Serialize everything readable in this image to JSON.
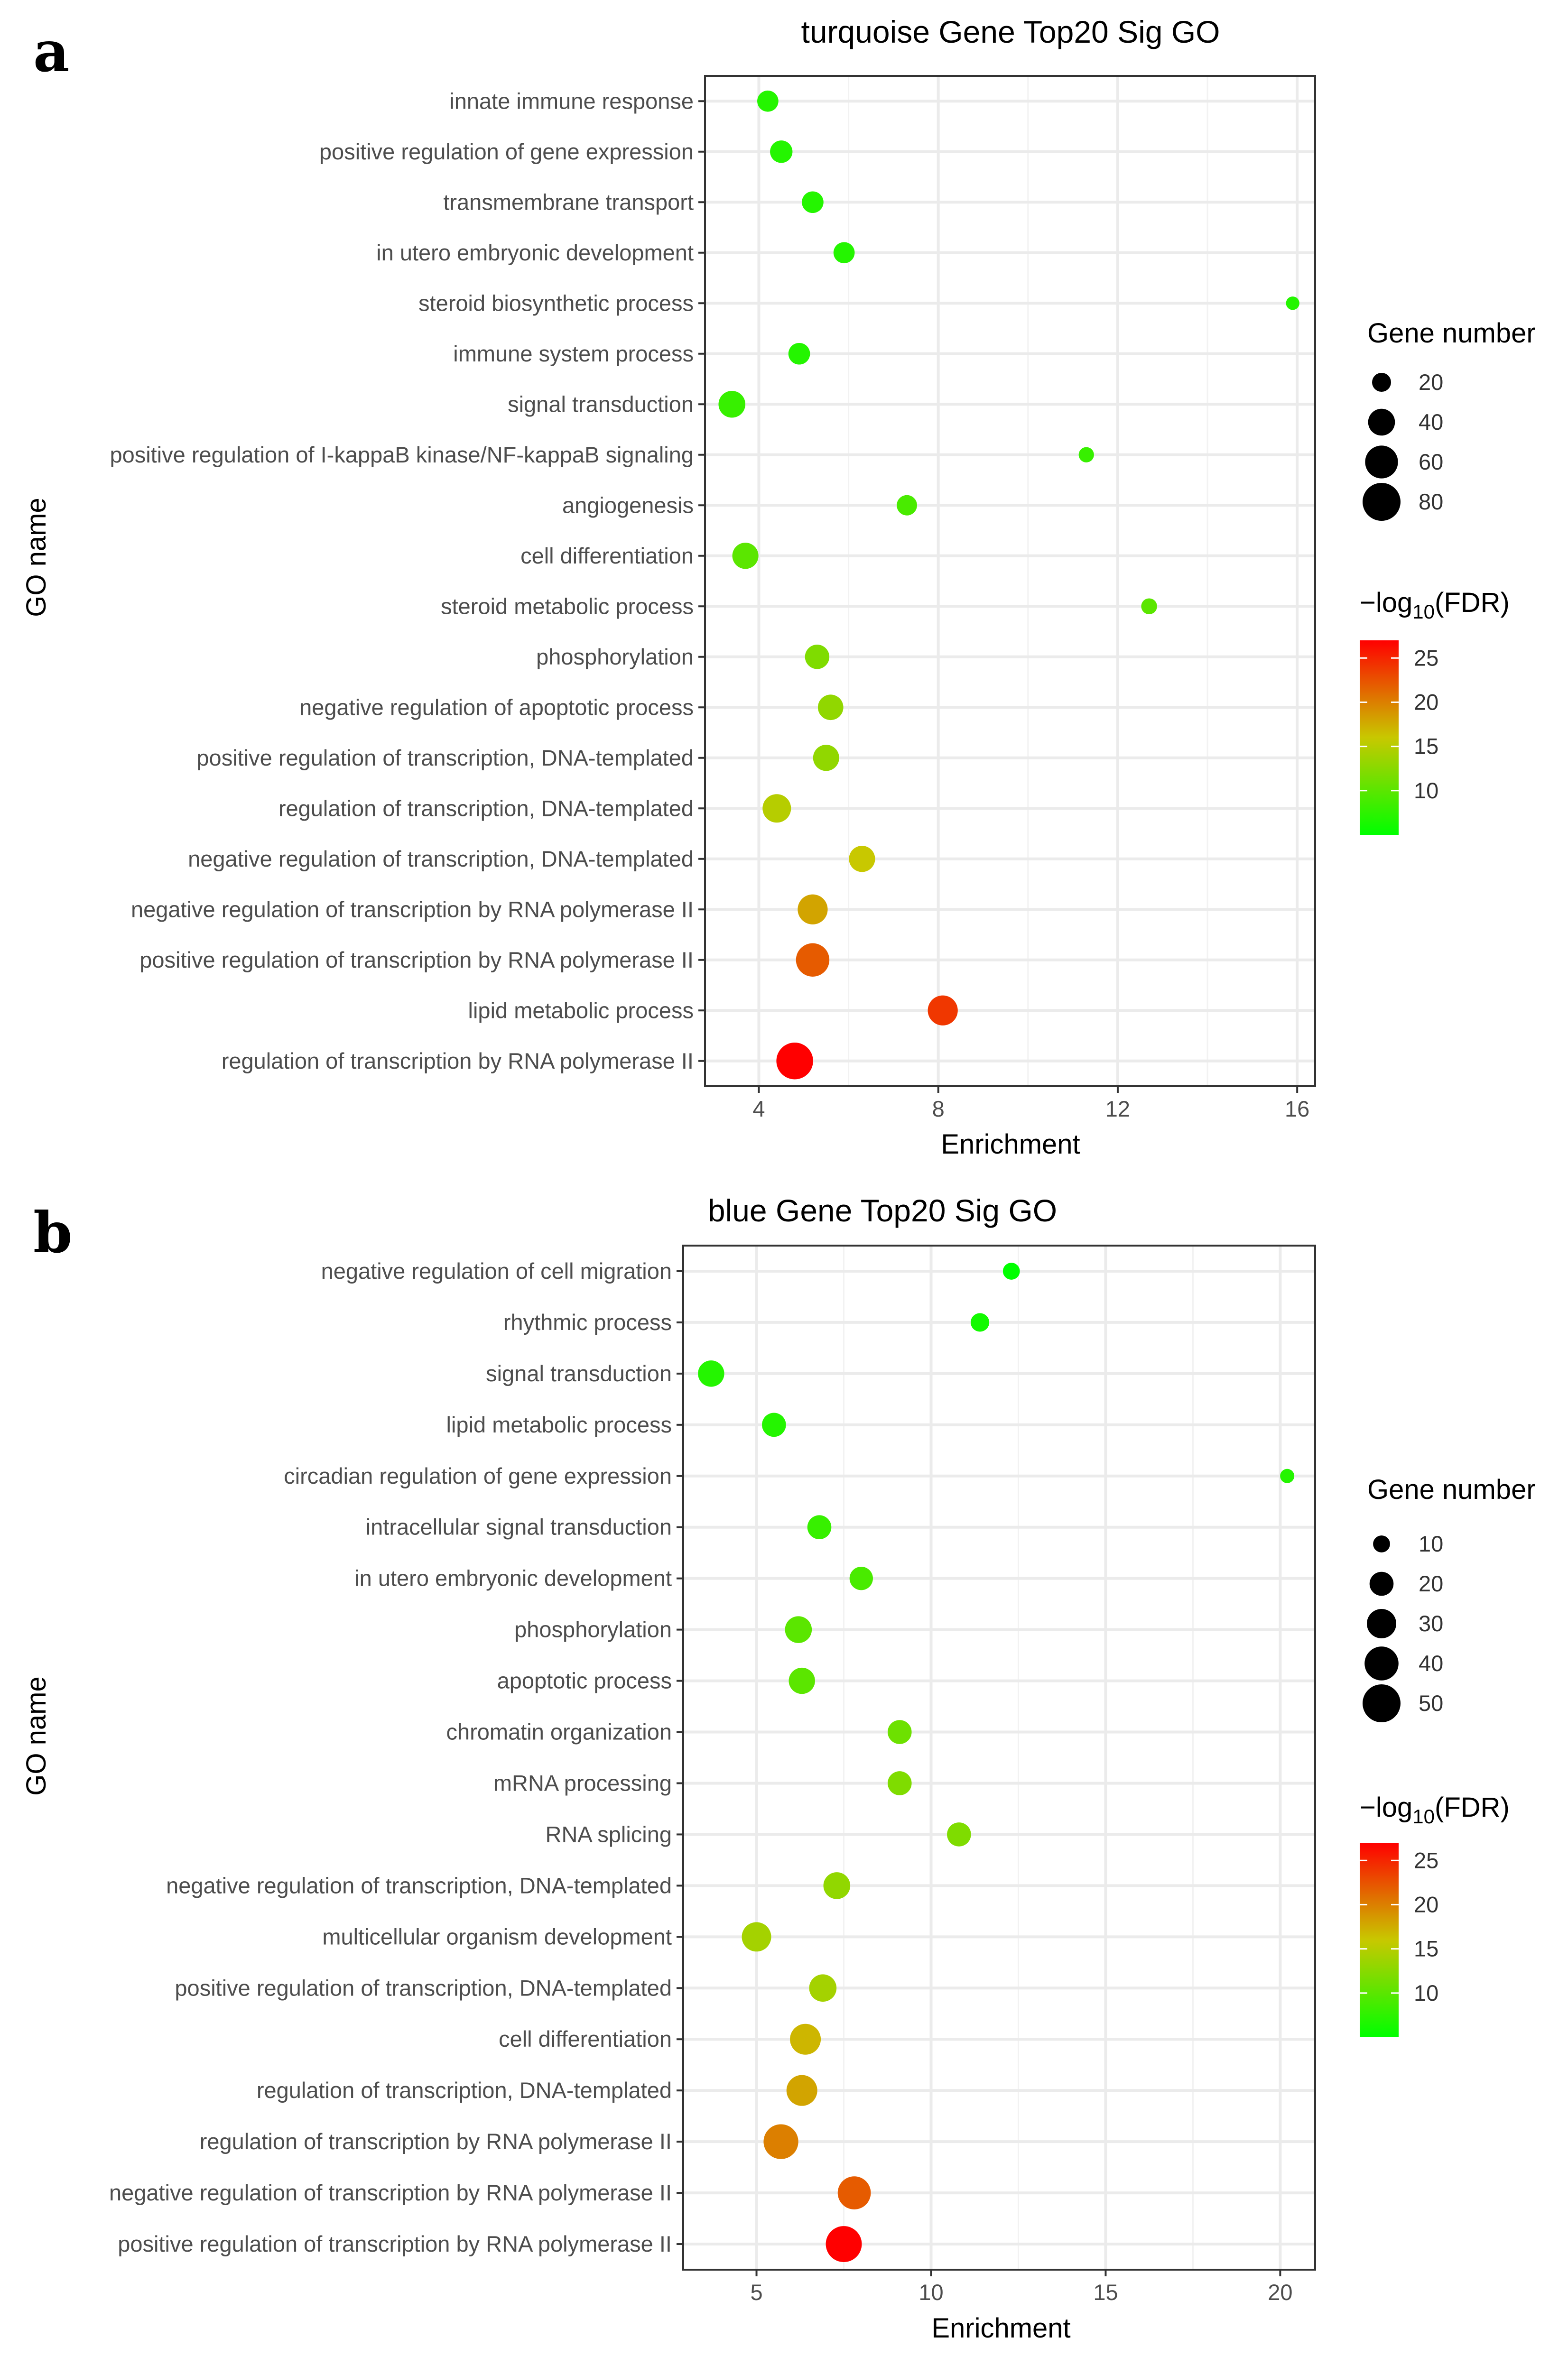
{
  "panels": [
    {
      "letter": "a",
      "chart_data": {
        "type": "scatter",
        "title": "turquoise Gene Top20 Sig GO",
        "xlabel": "Enrichment",
        "ylabel": "GO name",
        "xlim": [
          2.8,
          16.4
        ],
        "x_ticks": [
          4,
          8,
          12,
          16
        ],
        "grid": true,
        "categories": [
          "innate immune response",
          "positive regulation of gene expression",
          "transmembrane transport",
          "in utero embryonic development",
          "steroid biosynthetic process",
          "immune system process",
          "signal transduction",
          "positive regulation of I-kappaB kinase/NF-kappaB signaling",
          "angiogenesis",
          "cell differentiation",
          "steroid metabolic process",
          "phosphorylation",
          "negative regulation of apoptotic process",
          "positive regulation of transcription, DNA-templated",
          "regulation of transcription, DNA-templated",
          "negative regulation of transcription, DNA-templated",
          "negative regulation of transcription by RNA polymerase II",
          "positive regulation of transcription by RNA polymerase II",
          "lipid metabolic process",
          "regulation of transcription by RNA polymerase II"
        ],
        "enrichment": [
          4.2,
          4.5,
          5.2,
          5.9,
          15.9,
          4.9,
          3.4,
          11.3,
          7.3,
          3.7,
          12.7,
          5.3,
          5.6,
          5.5,
          4.4,
          6.3,
          5.2,
          5.2,
          8.1,
          4.8
        ],
        "gene_number": [
          25,
          28,
          26,
          25,
          10,
          26,
          40,
          13,
          23,
          38,
          14,
          33,
          36,
          38,
          45,
          38,
          50,
          62,
          50,
          75
        ],
        "neg_log10_fdr": [
          7,
          7,
          7,
          7,
          7,
          7,
          8,
          8,
          9,
          10,
          10,
          12,
          13,
          13,
          15,
          16,
          18,
          22,
          24,
          27
        ],
        "legend_size": {
          "title": "Gene number",
          "values": [
            20,
            40,
            60,
            80
          ],
          "labels": [
            "20",
            "40",
            "60",
            "80"
          ]
        },
        "legend_color": {
          "title_prefix": "−log",
          "title_sub": "10",
          "title_suffix": "(FDR)",
          "range": [
            5,
            27
          ],
          "ticks": [
            10,
            15,
            20,
            25
          ],
          "labels": [
            "10",
            "15",
            "20",
            "25"
          ],
          "low_color": "#00ff00",
          "mid_color": "#c8c800",
          "high_color": "#ff0000"
        }
      }
    },
    {
      "letter": "b",
      "chart_data": {
        "type": "scatter",
        "title": "blue Gene Top20 Sig GO",
        "xlabel": "Enrichment",
        "ylabel": "GO name",
        "xlim": [
          2.9,
          21.0
        ],
        "x_ticks": [
          5,
          10,
          15,
          20
        ],
        "grid": true,
        "categories": [
          "negative regulation of cell migration",
          "rhythmic process",
          "signal transduction",
          "lipid metabolic process",
          "circadian regulation of gene expression",
          "intracellular signal transduction",
          "in utero embryonic development",
          "phosphorylation",
          "apoptotic process",
          "chromatin organization",
          "mRNA processing",
          "RNA splicing",
          "negative regulation of transcription, DNA-templated",
          "multicellular organism development",
          "positive regulation of transcription, DNA-templated",
          "cell differentiation",
          "regulation of transcription, DNA-templated",
          "regulation of transcription by RNA polymerase II",
          "negative regulation of transcription by RNA polymerase II",
          "positive regulation of transcription by RNA polymerase II"
        ],
        "enrichment": [
          12.3,
          11.4,
          3.7,
          5.5,
          20.2,
          6.8,
          8.0,
          6.2,
          6.3,
          9.1,
          9.1,
          10.8,
          7.3,
          5.0,
          6.9,
          6.4,
          6.3,
          5.7,
          7.8,
          7.5
        ],
        "gene_number": [
          10,
          12,
          24,
          20,
          7,
          20,
          19,
          25,
          24,
          20,
          20,
          20,
          25,
          30,
          26,
          33,
          33,
          42,
          38,
          45
        ],
        "neg_log10_fdr": [
          5,
          6,
          7,
          7,
          7,
          8,
          9,
          10,
          10,
          11,
          12,
          12,
          13,
          14,
          14,
          17,
          18,
          20,
          22,
          27
        ],
        "legend_size": {
          "title": "Gene number",
          "values": [
            10,
            20,
            30,
            40,
            50
          ],
          "labels": [
            "10",
            "20",
            "30",
            "40",
            "50"
          ]
        },
        "legend_color": {
          "title_prefix": "−log",
          "title_sub": "10",
          "title_suffix": "(FDR)",
          "range": [
            5,
            27
          ],
          "ticks": [
            10,
            15,
            20,
            25
          ],
          "labels": [
            "10",
            "15",
            "20",
            "25"
          ],
          "low_color": "#00ff00",
          "mid_color": "#c8c800",
          "high_color": "#ff0000"
        }
      }
    }
  ]
}
